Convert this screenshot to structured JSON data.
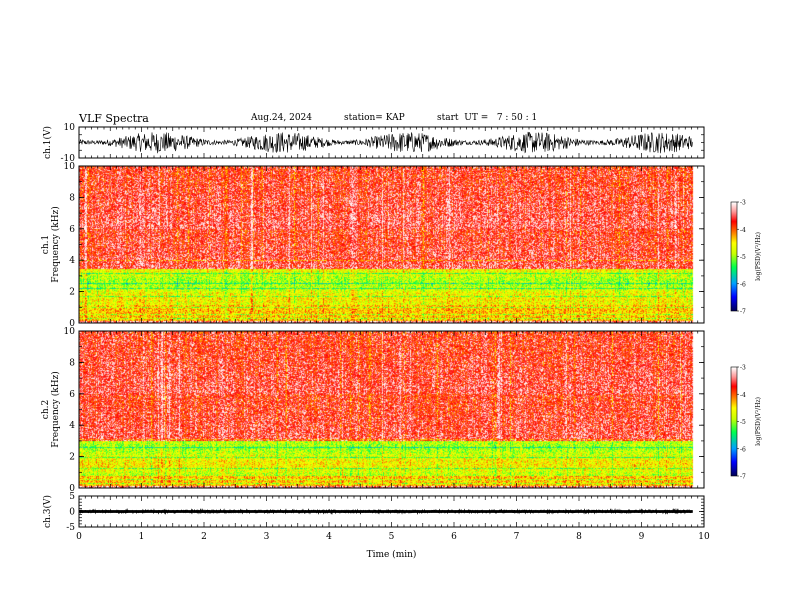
{
  "header": {
    "title": "VLF Spectra",
    "date": "Aug.24, 2024",
    "station": "station= KAP",
    "start": "start  UT =   7 : 50 : 1"
  },
  "chart_data": [
    {
      "type": "line",
      "name": "ch1-waveform",
      "ylabel": "ch.1(V)",
      "ylim": [
        -10,
        10
      ],
      "yticks": [
        "10",
        "-10"
      ],
      "xlim": [
        0,
        10
      ],
      "data_extent_x": [
        0,
        9.82
      ],
      "typical_amplitude": [
        -7,
        7
      ]
    },
    {
      "type": "heatmap",
      "name": "ch1-spectrogram",
      "ylabel": "ch.1\nFrequency (kHz)",
      "ylim": [
        0,
        10
      ],
      "yticks": [
        "0",
        "2",
        "4",
        "6",
        "8",
        "10"
      ],
      "xlim": [
        0,
        10
      ],
      "data_extent_x": [
        0,
        9.82
      ],
      "band_strong_khz": [
        1.2,
        3.5
      ],
      "colorbar": {
        "label": "log(PSD)(V²/Hz)",
        "range": [
          -7,
          -3
        ],
        "ticks": [
          "-3",
          "-4",
          "-5",
          "-6",
          "-7"
        ]
      }
    },
    {
      "type": "heatmap",
      "name": "ch2-spectrogram",
      "ylabel": "ch.2\nFrequency (kHz)",
      "ylim": [
        0,
        10
      ],
      "yticks": [
        "0",
        "2",
        "4",
        "6",
        "8",
        "10"
      ],
      "xlim": [
        0,
        10
      ],
      "data_extent_x": [
        0,
        9.82
      ],
      "band_strong_khz": [
        0.8,
        3.0
      ],
      "colorbar": {
        "label": "log(PSD)(V²/Hz)",
        "range": [
          -7,
          -3
        ],
        "ticks": [
          "-3",
          "-4",
          "-5",
          "-6",
          "-7"
        ]
      }
    },
    {
      "type": "line",
      "name": "ch3-waveform",
      "ylabel": "ch.3(V)",
      "ylim": [
        -5,
        5
      ],
      "yticks": [
        "5",
        "0",
        "-5"
      ],
      "xlim": [
        0,
        10
      ],
      "xlabel": "Time (min)",
      "xticks": [
        "0",
        "1",
        "2",
        "3",
        "4",
        "5",
        "6",
        "7",
        "8",
        "9",
        "10"
      ],
      "data_extent_x": [
        0,
        9.82
      ],
      "typical_amplitude": [
        -0.4,
        0.4
      ]
    }
  ],
  "colors": {
    "axis": "#000000",
    "waveform": "#000000",
    "colormap": [
      "#000066",
      "#0000ff",
      "#00a0ff",
      "#00ff00",
      "#ffff00",
      "#ff0000",
      "#ffffff"
    ]
  }
}
